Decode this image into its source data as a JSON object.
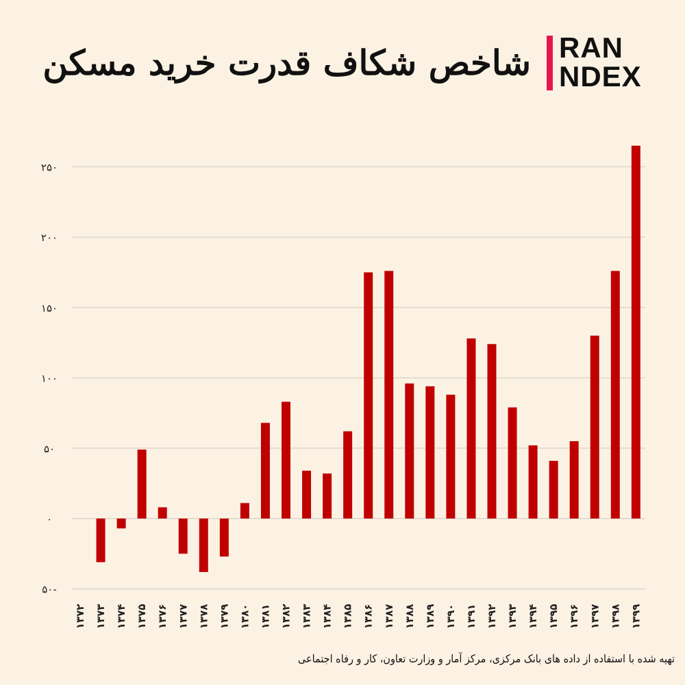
{
  "logo": {
    "line1": "RAN",
    "line2": "NDEX",
    "full": "IRAN INDEX",
    "accent": "#e5174f"
  },
  "chart_data": {
    "type": "bar",
    "title": "شاخص شکاف قدرت خرید مسکن",
    "xlabel": "",
    "ylabel": "",
    "ylim": [
      -50,
      265
    ],
    "grid": true,
    "yticks": [
      250,
      200,
      150,
      100,
      50,
      0,
      -50
    ],
    "ytick_labels": [
      "۲۵۰",
      "۲۰۰",
      "۱۵۰",
      "۱۰۰",
      "۵۰",
      "۰",
      "۵۰-"
    ],
    "categories": [
      "۱۳۷۲",
      "۱۳۷۳",
      "۱۳۷۴",
      "۱۳۷۵",
      "۱۳۷۶",
      "۱۳۷۷",
      "۱۳۷۸",
      "۱۳۷۹",
      "۱۳۸۰",
      "۱۳۸۱",
      "۱۳۸۲",
      "۱۳۸۳",
      "۱۳۸۴",
      "۱۳۸۵",
      "۱۳۸۶",
      "۱۳۸۷",
      "۱۳۸۸",
      "۱۳۸۹",
      "۱۳۹۰",
      "۱۳۹۱",
      "۱۳۹۲",
      "۱۳۹۳",
      "۱۳۹۴",
      "۱۳۹۵",
      "۱۳۹۶",
      "۱۳۹۷",
      "۱۳۹۸",
      "۱۳۹۹"
    ],
    "values": [
      0,
      -31,
      -7,
      49,
      8,
      -25,
      -38,
      -27,
      11,
      68,
      83,
      34,
      32,
      62,
      175,
      176,
      96,
      94,
      88,
      128,
      124,
      79,
      52,
      41,
      55,
      130,
      176,
      265
    ],
    "bar_color": "#c00000",
    "grid_color": "#e2dcd2"
  },
  "source": "تهیه شده با استفاده از داده های بانک مرکزی، مرکز آمار و وزارت تعاون، کار و رفاه اجتماعی"
}
